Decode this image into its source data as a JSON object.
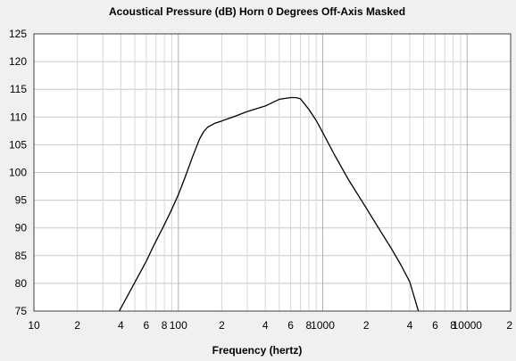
{
  "chart_data": {
    "type": "line",
    "title": "Acoustical Pressure (dB)   Horn   0 Degrees Off-Axis   Masked",
    "xlabel": "Frequency (hertz)",
    "ylabel": "",
    "x_scale": "log",
    "xlim": [
      10,
      20000
    ],
    "ylim": [
      75,
      125
    ],
    "grid": true,
    "legend": "none",
    "y_ticks": [
      75,
      80,
      85,
      90,
      95,
      100,
      105,
      110,
      115,
      120,
      125
    ],
    "x_tick_labels": [
      {
        "value": 10,
        "label": "10"
      },
      {
        "value": 20,
        "label": "2"
      },
      {
        "value": 40,
        "label": "4"
      },
      {
        "value": 60,
        "label": "6"
      },
      {
        "value": 80,
        "label": "8"
      },
      {
        "value": 100,
        "label": "100"
      },
      {
        "value": 200,
        "label": "2"
      },
      {
        "value": 400,
        "label": "4"
      },
      {
        "value": 600,
        "label": "6"
      },
      {
        "value": 800,
        "label": "8"
      },
      {
        "value": 1000,
        "label": "1000"
      },
      {
        "value": 2000,
        "label": "2"
      },
      {
        "value": 4000,
        "label": "4"
      },
      {
        "value": 6000,
        "label": "6"
      },
      {
        "value": 8000,
        "label": "8"
      },
      {
        "value": 10000,
        "label": "10000"
      },
      {
        "value": 20000,
        "label": "2"
      }
    ],
    "series": [
      {
        "color": "#000000",
        "x": [
          39,
          45,
          52,
          60,
          68,
          78,
          88,
          100,
          112,
          125,
          140,
          150,
          160,
          180,
          200,
          250,
          300,
          400,
          500,
          600,
          650,
          700,
          800,
          900,
          1000,
          1200,
          1500,
          2000,
          2500,
          3000,
          3500,
          4000,
          4600
        ],
        "y": [
          75,
          78,
          81,
          84,
          87,
          90,
          92.8,
          96,
          99.3,
          102.7,
          106,
          107.4,
          108.2,
          108.9,
          109.3,
          110.2,
          111,
          112,
          113.2,
          113.5,
          113.5,
          113.3,
          111.4,
          109.4,
          107.2,
          103.3,
          98.8,
          93.6,
          89.5,
          86.2,
          83.2,
          80.3,
          75
        ]
      }
    ]
  }
}
